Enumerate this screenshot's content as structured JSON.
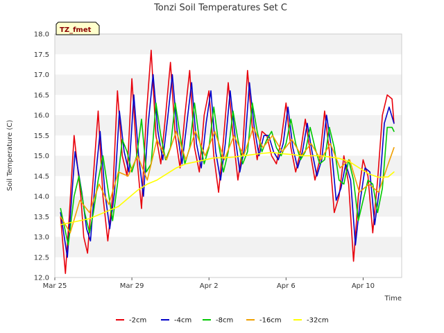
{
  "chart_data": {
    "type": "line",
    "title": "Tonzi Soil Temperatures Set C",
    "xlabel": "Time",
    "ylabel": "Soil Temperature (C)",
    "station_tag": "TZ_fmet",
    "xlim": [
      0,
      18
    ],
    "ylim": [
      12.0,
      18.0
    ],
    "xticks": [
      {
        "day": 0,
        "label": "Mar 25"
      },
      {
        "day": 4,
        "label": "Mar 29"
      },
      {
        "day": 8,
        "label": "Apr 2"
      },
      {
        "day": 12,
        "label": "Apr 6"
      },
      {
        "day": 16,
        "label": "Apr 10"
      }
    ],
    "yticks": [
      12.0,
      12.5,
      13.0,
      13.5,
      14.0,
      14.5,
      15.0,
      15.5,
      16.0,
      16.5,
      17.0,
      17.5,
      18.0
    ],
    "grid": "alternating horizontal bands",
    "legend_position": "bottom",
    "series": [
      {
        "name": "-2cm",
        "color": "#e8000b",
        "x": [
          0.3,
          0.55,
          0.75,
          1.0,
          1.35,
          1.5,
          1.7,
          2.0,
          2.25,
          2.5,
          2.75,
          3.0,
          3.25,
          3.5,
          3.75,
          4.0,
          4.25,
          4.5,
          4.75,
          5.0,
          5.25,
          5.5,
          5.75,
          6.0,
          6.25,
          6.5,
          6.75,
          7.0,
          7.25,
          7.5,
          7.75,
          8.0,
          8.25,
          8.5,
          8.75,
          9.0,
          9.25,
          9.5,
          9.75,
          10.0,
          10.25,
          10.5,
          10.75,
          11.0,
          11.25,
          11.5,
          11.75,
          12.0,
          12.25,
          12.5,
          12.75,
          13.0,
          13.25,
          13.5,
          13.75,
          14.0,
          14.25,
          14.5,
          14.75,
          15.0,
          15.25,
          15.5,
          15.75,
          16.0,
          16.25,
          16.5,
          16.75,
          17.0,
          17.25,
          17.5,
          17.6
        ],
        "y": [
          13.5,
          12.1,
          13.5,
          15.5,
          14.0,
          13.0,
          12.6,
          14.5,
          16.1,
          14.0,
          12.9,
          14.0,
          16.6,
          15.0,
          14.5,
          16.9,
          15.0,
          13.7,
          16.0,
          17.6,
          15.5,
          14.8,
          16.0,
          17.3,
          15.5,
          14.7,
          16.0,
          17.1,
          15.2,
          14.6,
          16.0,
          16.6,
          15.0,
          14.1,
          15.4,
          16.8,
          15.5,
          14.4,
          15.2,
          17.1,
          15.7,
          14.9,
          15.6,
          15.5,
          15.0,
          14.8,
          15.4,
          16.3,
          15.2,
          14.6,
          15.1,
          15.9,
          15.1,
          14.4,
          14.9,
          16.1,
          15.1,
          13.6,
          14.0,
          15.0,
          14.3,
          12.4,
          14.0,
          14.9,
          14.5,
          13.1,
          14.4,
          16.0,
          16.5,
          16.4,
          15.8
        ]
      },
      {
        "name": "-4cm",
        "color": "#0000c8",
        "x": [
          0.3,
          0.65,
          0.85,
          1.05,
          1.4,
          1.65,
          1.85,
          2.1,
          2.35,
          2.6,
          2.85,
          3.1,
          3.35,
          3.6,
          3.85,
          4.1,
          4.35,
          4.6,
          4.85,
          5.1,
          5.35,
          5.6,
          5.85,
          6.1,
          6.35,
          6.6,
          6.85,
          7.1,
          7.35,
          7.6,
          7.85,
          8.1,
          8.35,
          8.6,
          8.85,
          9.1,
          9.35,
          9.6,
          9.85,
          10.1,
          10.35,
          10.6,
          10.85,
          11.1,
          11.35,
          11.6,
          11.85,
          12.1,
          12.35,
          12.6,
          12.85,
          13.1,
          13.35,
          13.6,
          13.85,
          14.1,
          14.35,
          14.6,
          14.85,
          15.1,
          15.35,
          15.6,
          15.85,
          16.1,
          16.35,
          16.6,
          16.85,
          17.1,
          17.35,
          17.6
        ],
        "y": [
          13.6,
          12.5,
          13.8,
          15.1,
          14.1,
          13.2,
          12.9,
          14.4,
          15.6,
          14.1,
          13.2,
          14.1,
          16.1,
          15.1,
          14.6,
          16.5,
          15.0,
          14.0,
          15.8,
          17.0,
          15.6,
          14.9,
          15.9,
          17.0,
          15.6,
          14.8,
          15.8,
          16.8,
          15.3,
          14.7,
          15.8,
          16.6,
          15.1,
          14.4,
          15.3,
          16.6,
          15.5,
          14.6,
          15.2,
          16.8,
          15.7,
          15.0,
          15.5,
          15.5,
          15.1,
          14.9,
          15.3,
          16.2,
          15.2,
          14.7,
          15.1,
          15.8,
          15.1,
          14.5,
          14.9,
          16.0,
          15.2,
          13.9,
          14.2,
          14.8,
          14.4,
          12.8,
          13.9,
          14.7,
          14.6,
          13.3,
          14.2,
          15.8,
          16.2,
          15.8
        ]
      },
      {
        "name": "-8cm",
        "color": "#00c800",
        "x": [
          0.3,
          0.7,
          1.0,
          1.25,
          1.55,
          1.8,
          2.0,
          2.25,
          2.5,
          2.75,
          3.0,
          3.25,
          3.5,
          3.75,
          4.0,
          4.25,
          4.5,
          4.75,
          5.0,
          5.25,
          5.5,
          5.75,
          6.0,
          6.25,
          6.5,
          6.75,
          7.0,
          7.25,
          7.5,
          7.75,
          8.0,
          8.25,
          8.5,
          8.75,
          9.0,
          9.25,
          9.5,
          9.75,
          10.0,
          10.25,
          10.5,
          10.75,
          11.0,
          11.25,
          11.5,
          11.75,
          12.0,
          12.25,
          12.5,
          12.75,
          13.0,
          13.25,
          13.5,
          13.75,
          14.0,
          14.25,
          14.5,
          14.75,
          15.0,
          15.25,
          15.5,
          15.75,
          16.0,
          16.25,
          16.5,
          16.75,
          17.0,
          17.25,
          17.5,
          17.6
        ],
        "y": [
          13.7,
          12.8,
          14.0,
          14.5,
          13.6,
          13.1,
          13.6,
          14.4,
          15.0,
          14.2,
          13.4,
          14.3,
          15.4,
          15.1,
          14.6,
          15.0,
          15.9,
          14.6,
          14.8,
          16.3,
          15.5,
          14.9,
          15.2,
          16.3,
          15.5,
          14.8,
          15.2,
          16.3,
          15.4,
          14.8,
          15.2,
          16.2,
          15.3,
          14.6,
          15.1,
          16.1,
          15.4,
          14.8,
          15.1,
          16.3,
          15.6,
          15.1,
          15.4,
          15.6,
          15.2,
          15.0,
          15.3,
          15.9,
          15.3,
          14.9,
          15.1,
          15.7,
          15.2,
          14.8,
          14.9,
          15.7,
          15.2,
          14.4,
          14.3,
          14.9,
          14.4,
          13.4,
          13.9,
          14.4,
          14.3,
          13.6,
          14.2,
          15.7,
          15.7,
          15.6
        ]
      },
      {
        "name": "-16cm",
        "color": "#f0a000",
        "x": [
          0.3,
          0.8,
          1.3,
          1.8,
          2.3,
          2.8,
          3.3,
          3.8,
          4.3,
          4.8,
          5.3,
          5.8,
          6.3,
          6.8,
          7.3,
          7.8,
          8.3,
          8.8,
          9.3,
          9.8,
          10.3,
          10.8,
          11.3,
          11.8,
          12.3,
          12.8,
          13.3,
          13.8,
          14.3,
          14.8,
          15.3,
          15.8,
          16.3,
          16.8,
          17.3,
          17.6
        ],
        "y": [
          13.5,
          13.1,
          13.9,
          13.6,
          14.3,
          13.8,
          14.6,
          14.5,
          15.0,
          14.4,
          15.4,
          14.9,
          15.6,
          14.9,
          15.6,
          15.0,
          15.6,
          14.9,
          15.5,
          15.0,
          15.7,
          15.2,
          15.5,
          15.1,
          15.4,
          15.0,
          15.3,
          14.9,
          15.3,
          14.7,
          14.9,
          14.1,
          14.3,
          14.1,
          14.8,
          15.2
        ]
      },
      {
        "name": "-32cm",
        "color": "#ffff00",
        "x": [
          0.3,
          0.8,
          1.3,
          1.8,
          2.3,
          2.8,
          3.3,
          3.8,
          4.3,
          4.8,
          5.3,
          5.8,
          6.3,
          6.8,
          7.3,
          7.8,
          8.3,
          8.8,
          9.3,
          9.8,
          10.3,
          10.8,
          11.3,
          11.8,
          12.3,
          12.8,
          13.3,
          13.8,
          14.3,
          14.8,
          15.3,
          15.8,
          16.3,
          16.8,
          17.3,
          17.6
        ],
        "y": [
          13.3,
          13.35,
          13.4,
          13.45,
          13.55,
          13.65,
          13.75,
          13.95,
          14.15,
          14.3,
          14.4,
          14.55,
          14.7,
          14.8,
          14.85,
          14.9,
          14.95,
          14.95,
          14.97,
          15.0,
          15.03,
          15.06,
          15.08,
          15.05,
          15.03,
          15.0,
          15.0,
          15.0,
          14.97,
          14.93,
          14.85,
          14.7,
          14.55,
          14.47,
          14.48,
          14.6
        ]
      }
    ]
  }
}
